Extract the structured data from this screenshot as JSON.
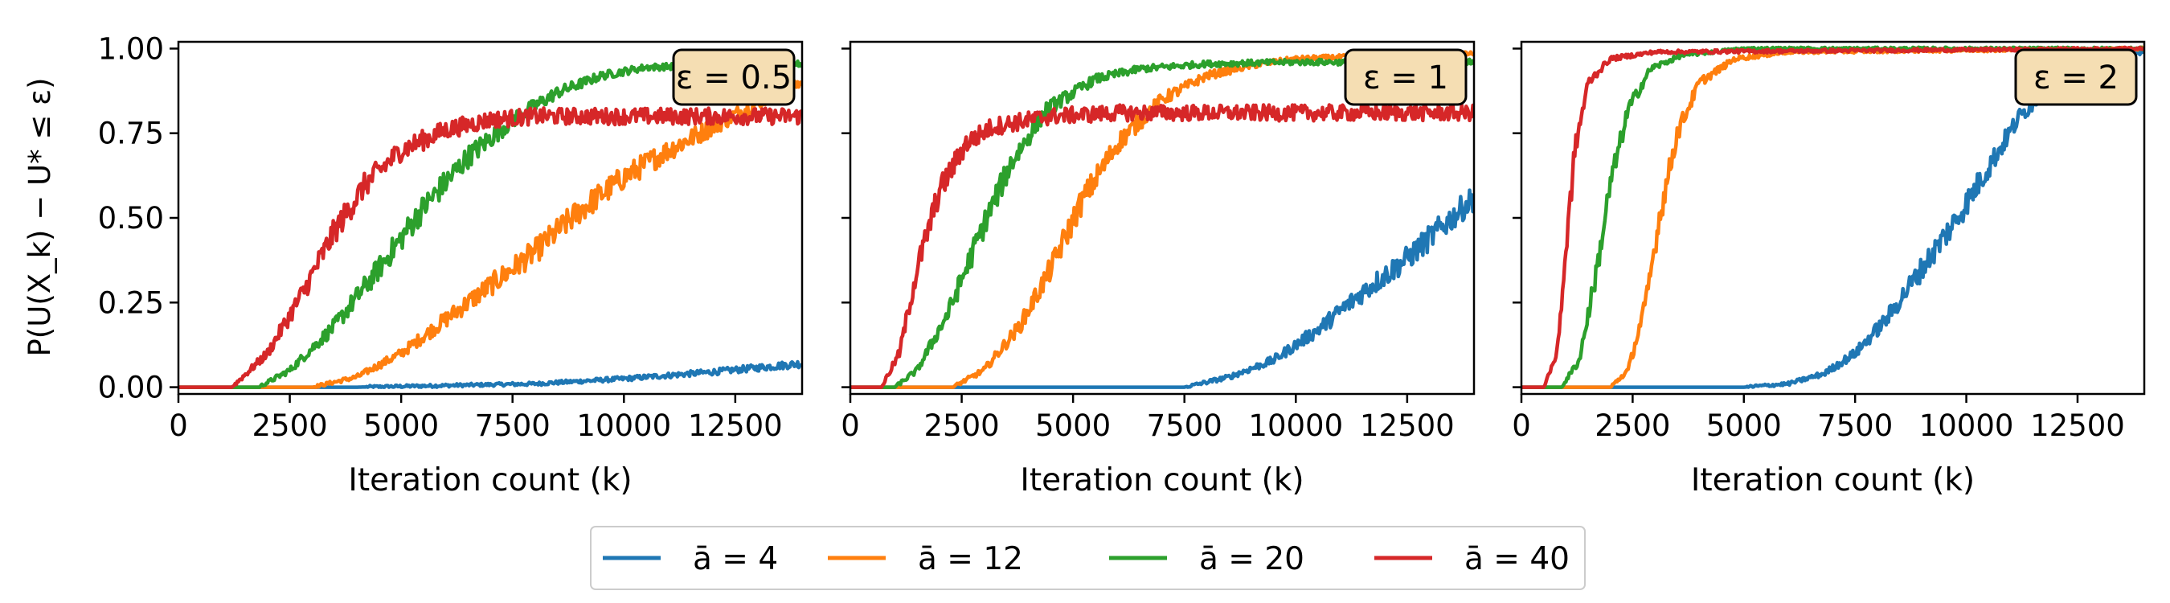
{
  "chart_data": [
    {
      "type": "line",
      "annotation": "ε = 0.5",
      "xlabel": "Iteration count (k)",
      "ylabel": "P(U(X_k) − U* ≤ ε)",
      "xlim": [
        0,
        14000
      ],
      "ylim": [
        -0.02,
        1.02
      ],
      "xticks": [
        "0",
        "2500",
        "5000",
        "7500",
        "10000",
        "12500"
      ],
      "yticks": [
        "0.00",
        "0.25",
        "0.50",
        "0.75",
        "1.00"
      ],
      "series": [
        {
          "name": "ā = 4",
          "points": [
            [
              0,
              0
            ],
            [
              4000,
              0
            ],
            [
              6000,
              0.005
            ],
            [
              8000,
              0.01
            ],
            [
              10000,
              0.025
            ],
            [
              12000,
              0.045
            ],
            [
              14000,
              0.07
            ]
          ]
        },
        {
          "name": "ā = 12",
          "points": [
            [
              0,
              0
            ],
            [
              3000,
              0
            ],
            [
              4000,
              0.03
            ],
            [
              5000,
              0.1
            ],
            [
              6000,
              0.2
            ],
            [
              7000,
              0.3
            ],
            [
              8000,
              0.4
            ],
            [
              9000,
              0.52
            ],
            [
              10000,
              0.62
            ],
            [
              11000,
              0.7
            ],
            [
              12000,
              0.77
            ],
            [
              13000,
              0.84
            ],
            [
              14000,
              0.9
            ]
          ]
        },
        {
          "name": "ā = 20",
          "points": [
            [
              0,
              0
            ],
            [
              1800,
              0
            ],
            [
              2500,
              0.05
            ],
            [
              3500,
              0.18
            ],
            [
              4500,
              0.35
            ],
            [
              5500,
              0.53
            ],
            [
              6500,
              0.68
            ],
            [
              7500,
              0.79
            ],
            [
              8500,
              0.87
            ],
            [
              9500,
              0.92
            ],
            [
              10500,
              0.945
            ],
            [
              12000,
              0.95
            ],
            [
              14000,
              0.955
            ]
          ]
        },
        {
          "name": "ā = 40",
          "points": [
            [
              0,
              0
            ],
            [
              1200,
              0
            ],
            [
              2000,
              0.1
            ],
            [
              2800,
              0.28
            ],
            [
              3500,
              0.46
            ],
            [
              4200,
              0.6
            ],
            [
              5000,
              0.7
            ],
            [
              6000,
              0.76
            ],
            [
              7000,
              0.79
            ],
            [
              8000,
              0.8
            ],
            [
              14000,
              0.8
            ]
          ]
        }
      ]
    },
    {
      "type": "line",
      "annotation": "ε = 1",
      "xlabel": "Iteration count (k)",
      "ylabel": "",
      "xlim": [
        0,
        14000
      ],
      "ylim": [
        -0.02,
        1.02
      ],
      "xticks": [
        "0",
        "2500",
        "5000",
        "7500",
        "10000",
        "12500"
      ],
      "yticks": [
        "",
        "",
        "",
        "",
        ""
      ],
      "series": [
        {
          "name": "ā = 4",
          "points": [
            [
              0,
              0
            ],
            [
              7500,
              0
            ],
            [
              8500,
              0.03
            ],
            [
              9500,
              0.08
            ],
            [
              10500,
              0.17
            ],
            [
              11500,
              0.28
            ],
            [
              12500,
              0.38
            ],
            [
              13500,
              0.5
            ],
            [
              14000,
              0.56
            ]
          ]
        },
        {
          "name": "ā = 12",
          "points": [
            [
              0,
              0
            ],
            [
              2300,
              0
            ],
            [
              3000,
              0.05
            ],
            [
              3800,
              0.18
            ],
            [
              4500,
              0.35
            ],
            [
              5200,
              0.55
            ],
            [
              6000,
              0.72
            ],
            [
              7000,
              0.85
            ],
            [
              8000,
              0.92
            ],
            [
              9000,
              0.95
            ],
            [
              10000,
              0.97
            ],
            [
              12000,
              0.98
            ],
            [
              14000,
              0.985
            ]
          ]
        },
        {
          "name": "ā = 20",
          "points": [
            [
              0,
              0
            ],
            [
              1000,
              0
            ],
            [
              1500,
              0.05
            ],
            [
              2200,
              0.22
            ],
            [
              3000,
              0.48
            ],
            [
              3600,
              0.66
            ],
            [
              4400,
              0.82
            ],
            [
              5500,
              0.91
            ],
            [
              6500,
              0.94
            ],
            [
              8000,
              0.955
            ],
            [
              10000,
              0.96
            ],
            [
              14000,
              0.96
            ]
          ]
        },
        {
          "name": "ā = 40",
          "points": [
            [
              0,
              0
            ],
            [
              700,
              0
            ],
            [
              1100,
              0.1
            ],
            [
              1500,
              0.35
            ],
            [
              2000,
              0.58
            ],
            [
              2600,
              0.72
            ],
            [
              3200,
              0.77
            ],
            [
              4500,
              0.8
            ],
            [
              6000,
              0.81
            ],
            [
              14000,
              0.81
            ]
          ]
        }
      ]
    },
    {
      "type": "line",
      "annotation": "ε = 2",
      "xlabel": "Iteration count (k)",
      "ylabel": "",
      "xlim": [
        0,
        14000
      ],
      "ylim": [
        -0.02,
        1.02
      ],
      "xticks": [
        "0",
        "2500",
        "5000",
        "7500",
        "10000",
        "12500"
      ],
      "yticks": [
        "",
        "",
        "",
        "",
        ""
      ],
      "series": [
        {
          "name": "ā = 4",
          "points": [
            [
              0,
              0
            ],
            [
              5000,
              0
            ],
            [
              6000,
              0.01
            ],
            [
              6800,
              0.04
            ],
            [
              7500,
              0.1
            ],
            [
              8200,
              0.2
            ],
            [
              9000,
              0.35
            ],
            [
              9800,
              0.5
            ],
            [
              10500,
              0.65
            ],
            [
              11200,
              0.8
            ],
            [
              12000,
              0.9
            ],
            [
              13000,
              0.96
            ],
            [
              14000,
              0.99
            ]
          ]
        },
        {
          "name": "ā = 12",
          "points": [
            [
              0,
              0
            ],
            [
              2000,
              0
            ],
            [
              2400,
              0.05
            ],
            [
              2800,
              0.25
            ],
            [
              3100,
              0.5
            ],
            [
              3500,
              0.75
            ],
            [
              4000,
              0.9
            ],
            [
              4800,
              0.97
            ],
            [
              6000,
              0.99
            ],
            [
              14000,
              1.0
            ]
          ]
        },
        {
          "name": "ā = 20",
          "points": [
            [
              0,
              0
            ],
            [
              900,
              0
            ],
            [
              1300,
              0.08
            ],
            [
              1700,
              0.35
            ],
            [
              2000,
              0.6
            ],
            [
              2400,
              0.82
            ],
            [
              2900,
              0.94
            ],
            [
              3600,
              0.98
            ],
            [
              5000,
              1.0
            ],
            [
              14000,
              1.0
            ]
          ]
        },
        {
          "name": "ā = 40",
          "points": [
            [
              0,
              0
            ],
            [
              500,
              0
            ],
            [
              800,
              0.1
            ],
            [
              1000,
              0.4
            ],
            [
              1200,
              0.7
            ],
            [
              1500,
              0.9
            ],
            [
              2000,
              0.97
            ],
            [
              3000,
              0.99
            ],
            [
              14000,
              1.0
            ]
          ]
        }
      ]
    }
  ],
  "legend": [
    {
      "label": "ā = 4",
      "color": "#1f77b4"
    },
    {
      "label": "ā = 12",
      "color": "#ff7f0e"
    },
    {
      "label": "ā = 20",
      "color": "#2ca02c"
    },
    {
      "label": "ā = 40",
      "color": "#d62728"
    }
  ],
  "badge_fill": "#f5deb3"
}
